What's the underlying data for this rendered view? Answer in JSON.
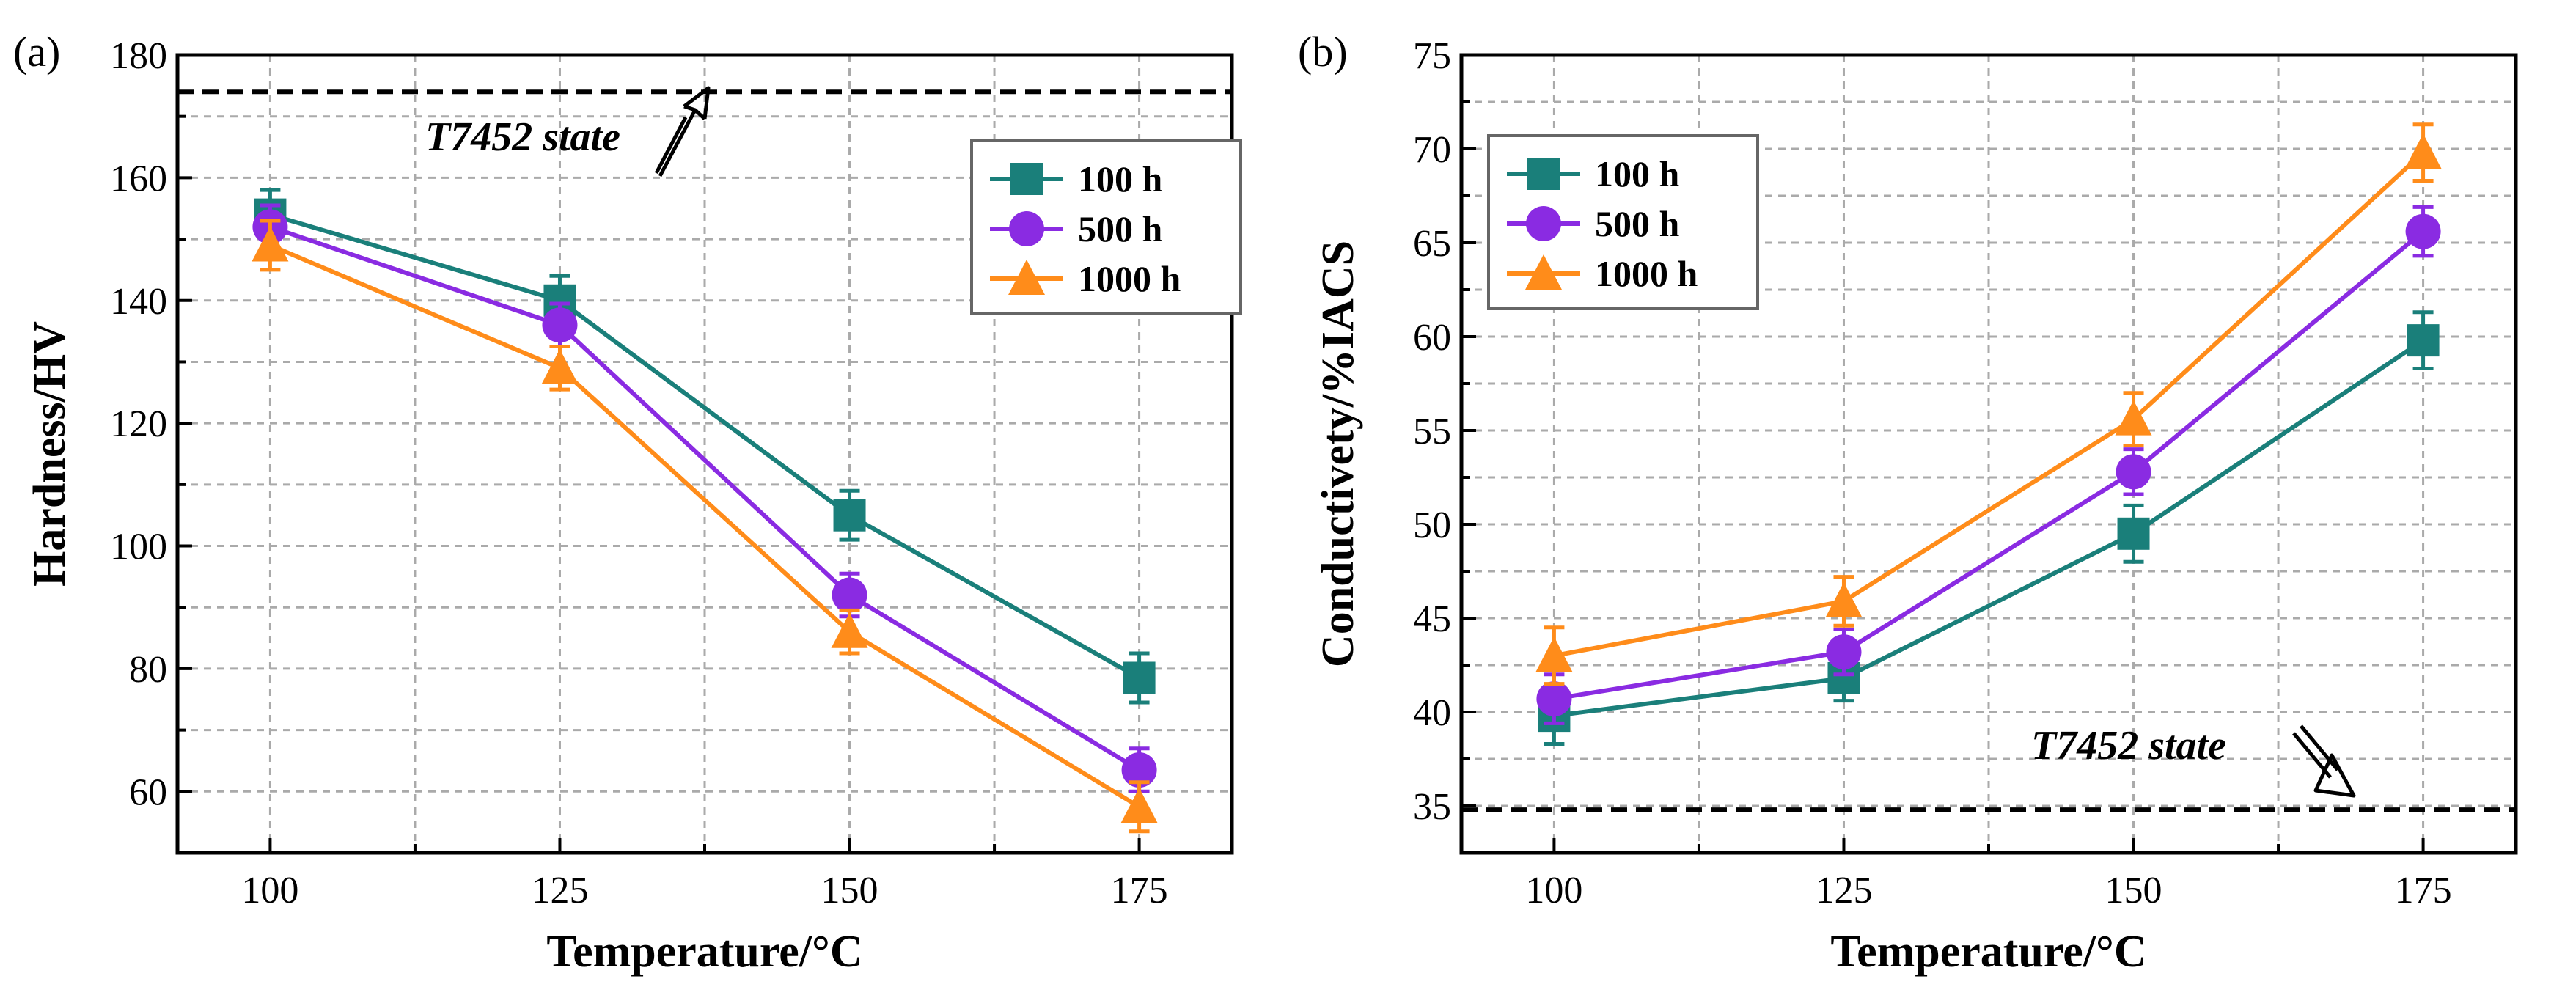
{
  "chart_data": [
    {
      "panel_label": "(a)",
      "type": "line",
      "xlabel": "Temperature/°C",
      "ylabel": "Hardness/HV",
      "x": [
        100,
        125,
        150,
        175
      ],
      "x_ticks": [
        "100",
        "125",
        "150",
        "175"
      ],
      "y_ticks": [
        "60",
        "80",
        "100",
        "120",
        "140",
        "160",
        "180"
      ],
      "xlim": [
        92,
        183
      ],
      "ylim": [
        50,
        180
      ],
      "grid": true,
      "legend_position": "top-right",
      "reference": {
        "label": "T7452 state",
        "value": 174
      },
      "series": [
        {
          "name": "100 h",
          "marker": "square",
          "color": "#1a7f7a",
          "values": [
            154,
            140,
            105,
            78.5
          ],
          "errors": [
            4,
            4,
            4,
            4
          ]
        },
        {
          "name": "500 h",
          "marker": "circle",
          "color": "#8a2be2",
          "values": [
            152,
            136,
            92,
            63.5
          ],
          "errors": [
            3.5,
            3.5,
            3.5,
            3.5
          ]
        },
        {
          "name": "1000 h",
          "marker": "triangle",
          "color": "#ff8c1a",
          "values": [
            149,
            129,
            86,
            57.5
          ],
          "errors": [
            4,
            3.5,
            3.5,
            4
          ]
        }
      ]
    },
    {
      "panel_label": "(b)",
      "type": "line",
      "xlabel": "Temperature/°C",
      "ylabel": "Conductivety/%IACS",
      "x": [
        100,
        125,
        150,
        175
      ],
      "x_ticks": [
        "100",
        "125",
        "150",
        "175"
      ],
      "y_ticks": [
        "35",
        "40",
        "45",
        "50",
        "55",
        "60",
        "65",
        "70",
        "75"
      ],
      "xlim": [
        92,
        183
      ],
      "ylim": [
        32.5,
        75
      ],
      "grid": true,
      "legend_position": "top-left",
      "reference": {
        "label": "T7452 state",
        "value": 34.8
      },
      "series": [
        {
          "name": "100 h",
          "marker": "square",
          "color": "#1a7f7a",
          "values": [
            39.8,
            41.8,
            49.5,
            59.8
          ],
          "errors": [
            1.5,
            1.2,
            1.5,
            1.5
          ]
        },
        {
          "name": "500 h",
          "marker": "circle",
          "color": "#8a2be2",
          "values": [
            40.7,
            43.2,
            52.8,
            65.6
          ],
          "errors": [
            1.3,
            1.2,
            1.2,
            1.3
          ]
        },
        {
          "name": "1000 h",
          "marker": "triangle",
          "color": "#ff8c1a",
          "values": [
            43.0,
            45.9,
            55.6,
            69.8
          ],
          "errors": [
            1.5,
            1.3,
            1.4,
            1.5
          ]
        }
      ]
    }
  ]
}
